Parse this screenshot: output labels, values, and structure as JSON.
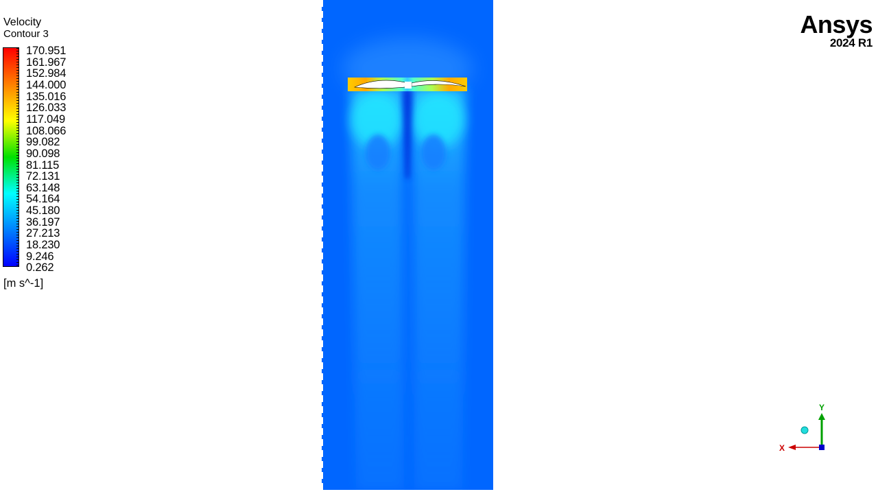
{
  "legend": {
    "title": "Velocity",
    "subtitle": "Contour 3",
    "labels": [
      "170.951",
      "161.967",
      "152.984",
      "144.000",
      "135.016",
      "126.033",
      "117.049",
      "108.066",
      "99.082",
      "90.098",
      "81.115",
      "72.131",
      "63.148",
      "54.164",
      "45.180",
      "36.197",
      "27.213",
      "18.230",
      "9.246",
      "0.262"
    ],
    "units": "[m s^-1]",
    "colors": [
      "#ff0000",
      "#ff8000",
      "#ffff00",
      "#00e000",
      "#00ffff",
      "#0080ff",
      "#0000ff"
    ]
  },
  "branding": {
    "product": "Ansys",
    "version": "2024 R1"
  },
  "triad": {
    "x_label": "X",
    "y_label": "Y",
    "x_color": "#cc0000",
    "y_color": "#00a000",
    "z_color": "#0000cc"
  },
  "field": {
    "background_color": "#0066ff",
    "jet_color": "#22aaff",
    "rotor_color": "#ffaa00"
  }
}
